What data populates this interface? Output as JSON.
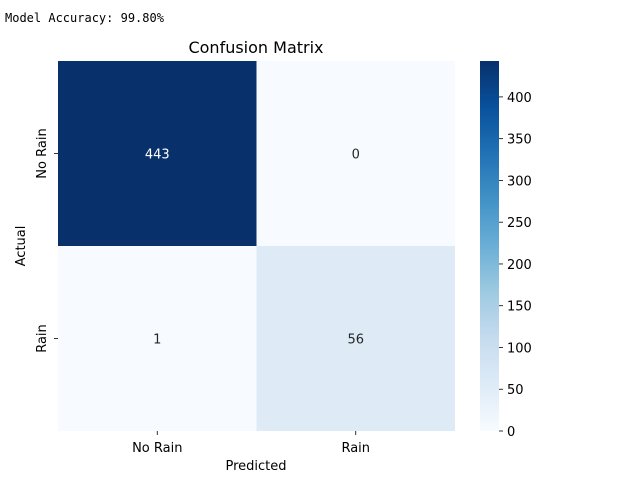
{
  "output_text": "Model Accuracy: 99.80%",
  "chart_data": {
    "type": "heatmap",
    "title": "Confusion Matrix",
    "xlabel": "Predicted",
    "ylabel": "Actual",
    "x_categories": [
      "No Rain",
      "Rain"
    ],
    "y_categories": [
      "No Rain",
      "Rain"
    ],
    "values": [
      [
        443,
        0
      ],
      [
        1,
        56
      ]
    ],
    "colormap": "Blues",
    "colorbar": {
      "range": [
        0,
        443
      ],
      "ticks": [
        0,
        50,
        100,
        150,
        200,
        250,
        300,
        350,
        400
      ]
    }
  }
}
